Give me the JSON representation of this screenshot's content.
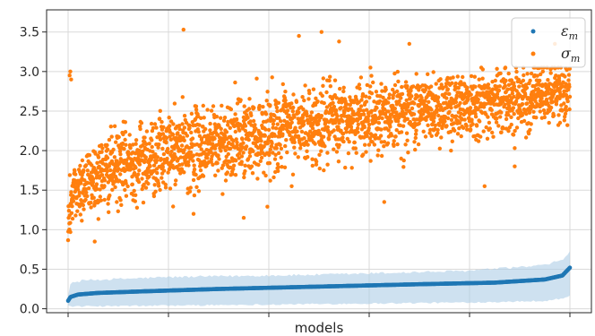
{
  "chart_data": {
    "type": "scatter",
    "title": "",
    "xlabel": "models",
    "ylabel": "",
    "x_range": [
      0,
      10000
    ],
    "ylim": [
      -0.05,
      3.78
    ],
    "y_ticks": [
      0.0,
      0.5,
      1.0,
      1.5,
      2.0,
      2.5,
      3.0,
      3.5
    ],
    "y_tick_labels": [
      "0.0",
      "0.5",
      "1.0",
      "1.5",
      "2.0",
      "2.5",
      "3.0",
      "3.5"
    ],
    "x_ticks_labeled": false,
    "grid": true,
    "legend_position": "top-right",
    "series": [
      {
        "name": "ε_m",
        "legend_main": "ε",
        "legend_sub": "m",
        "color": "#1f77b4",
        "band_color": "#aecde6",
        "trend": {
          "x": [
            0,
            50,
            200,
            600,
            1500,
            3000,
            5000,
            7000,
            8500,
            9500,
            9850,
            10000
          ],
          "y": [
            0.1,
            0.15,
            0.18,
            0.2,
            0.22,
            0.25,
            0.28,
            0.31,
            0.33,
            0.37,
            0.42,
            0.52
          ]
        },
        "band": {
          "x": [
            0,
            50,
            300,
            2000,
            5000,
            8000,
            9500,
            9850,
            10000
          ],
          "lower": [
            0.05,
            0.03,
            0.03,
            0.04,
            0.06,
            0.08,
            0.1,
            0.13,
            0.16
          ],
          "upper": [
            0.18,
            0.32,
            0.36,
            0.4,
            0.43,
            0.48,
            0.55,
            0.62,
            0.72
          ]
        }
      },
      {
        "name": "σ_m",
        "legend_main": "σ",
        "legend_sub": "m",
        "color": "#ff7f0e",
        "trend": {
          "x": [
            0,
            30,
            100,
            300,
            1000,
            2000,
            3000,
            4000,
            5000,
            6000,
            7000,
            8000,
            9000,
            10000
          ],
          "y": [
            0.95,
            1.25,
            1.45,
            1.6,
            1.8,
            1.97,
            2.1,
            2.22,
            2.33,
            2.43,
            2.52,
            2.6,
            2.67,
            2.75
          ]
        },
        "spread": {
          "x": [
            0,
            300,
            2000,
            5000,
            8000,
            10000
          ],
          "sd": [
            0.18,
            0.22,
            0.24,
            0.24,
            0.21,
            0.18
          ]
        },
        "outliers": [
          {
            "x": 30,
            "y": 2.95
          },
          {
            "x": 45,
            "y": 3.0
          },
          {
            "x": 60,
            "y": 2.9
          },
          {
            "x": 2300,
            "y": 3.53
          },
          {
            "x": 5050,
            "y": 3.5
          },
          {
            "x": 4600,
            "y": 3.45
          },
          {
            "x": 5400,
            "y": 3.38
          },
          {
            "x": 6800,
            "y": 3.35
          },
          {
            "x": 9700,
            "y": 3.35
          },
          {
            "x": 6300,
            "y": 1.35
          },
          {
            "x": 8300,
            "y": 1.55
          },
          {
            "x": 3500,
            "y": 1.15
          },
          {
            "x": 2500,
            "y": 1.2
          },
          {
            "x": 8900,
            "y": 1.8
          }
        ]
      }
    ]
  }
}
